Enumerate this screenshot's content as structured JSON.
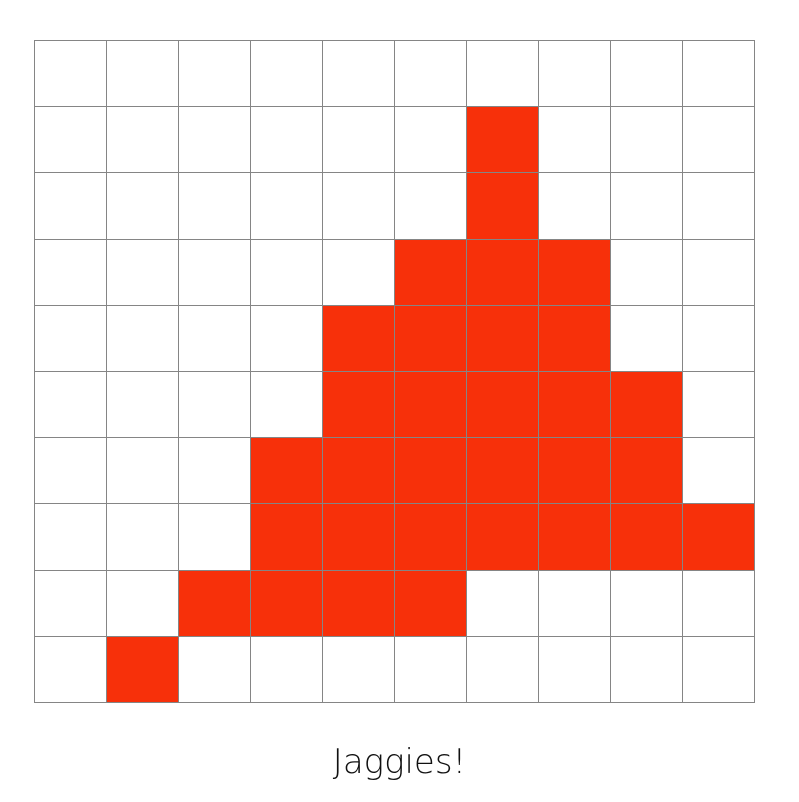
{
  "diagram": {
    "rows": 10,
    "cols": 10,
    "fill_color": "#f7300a",
    "empty_color": "#ffffff",
    "line_color": "#858585",
    "filled_cells_by_row": [
      [],
      [
        6
      ],
      [
        6
      ],
      [
        5,
        6,
        7
      ],
      [
        4,
        5,
        6,
        7
      ],
      [
        4,
        5,
        6,
        7,
        8
      ],
      [
        3,
        4,
        5,
        6,
        7,
        8
      ],
      [
        3,
        4,
        5,
        6,
        7,
        8,
        9
      ],
      [
        2,
        3,
        4,
        5
      ],
      [
        1
      ]
    ]
  },
  "caption": "Jaggies!"
}
